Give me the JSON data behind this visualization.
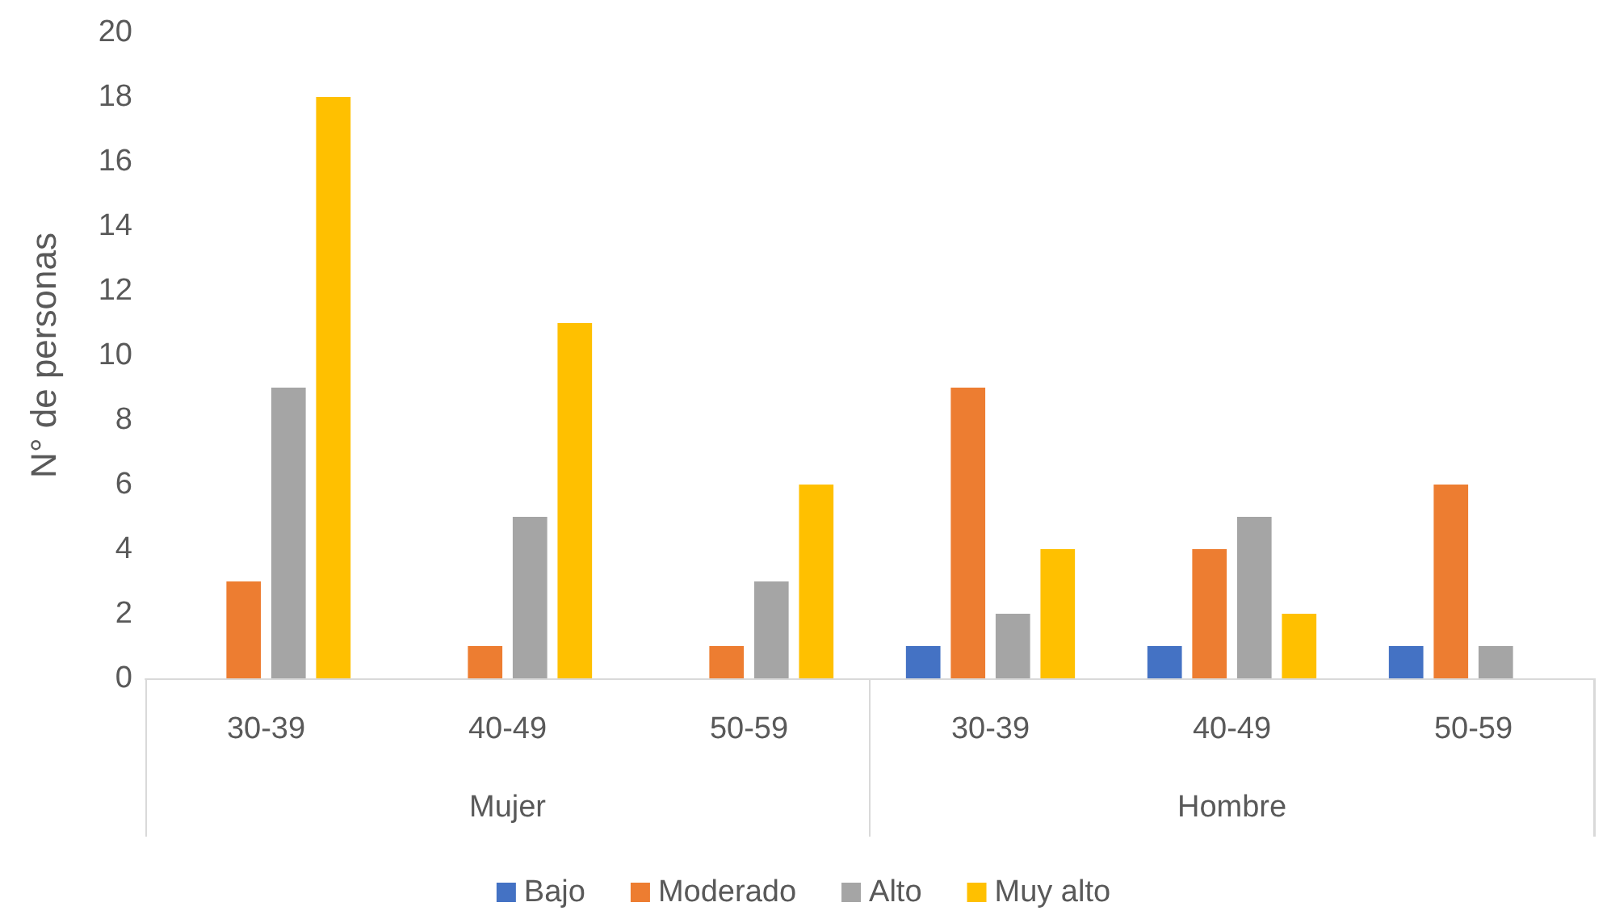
{
  "chart_data": {
    "type": "bar",
    "ylabel": "N° de personas",
    "categories": [
      "30-39",
      "40-49",
      "50-59",
      "30-39",
      "40-49",
      "50-59"
    ],
    "annotations": [
      "Mujer",
      "Hombre"
    ],
    "series": [
      {
        "name": "Bajo",
        "color": "#4472c4",
        "values": [
          0,
          0,
          0,
          1,
          1,
          1
        ]
      },
      {
        "name": "Moderado",
        "color": "#ed7d31",
        "values": [
          3,
          1,
          1,
          9,
          4,
          6
        ]
      },
      {
        "name": "Alto",
        "color": "#a5a5a5",
        "values": [
          9,
          5,
          3,
          2,
          5,
          1
        ]
      },
      {
        "name": "Muy alto",
        "color": "#ffc000",
        "values": [
          18,
          11,
          6,
          4,
          2,
          0
        ]
      }
    ],
    "ylim": [
      0,
      20
    ],
    "yticks": [
      0,
      2,
      4,
      6,
      8,
      10,
      12,
      14,
      16,
      18,
      20
    ],
    "grid": false,
    "legend": "bottom"
  }
}
